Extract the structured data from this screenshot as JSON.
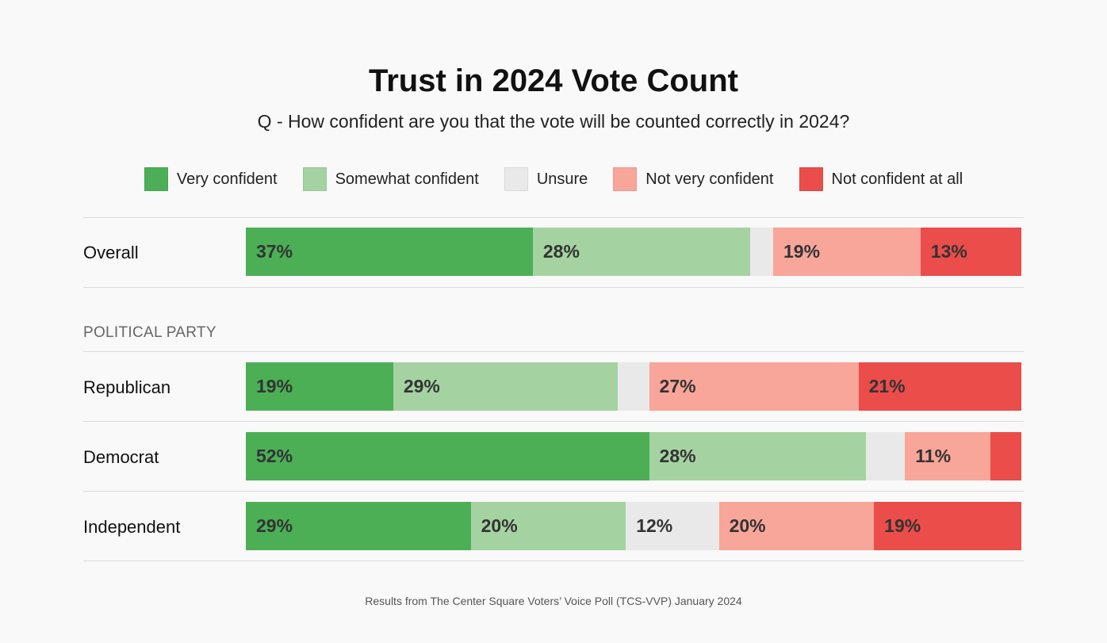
{
  "chart_data": {
    "type": "bar",
    "orientation": "horizontal-stacked-100",
    "title": "Trust in 2024 Vote Count",
    "subtitle": "Q - How confident are you that the vote will be counted correctly in 2024?",
    "legend_placement": "top",
    "series": [
      {
        "name": "Very confident",
        "color": "#4caf56"
      },
      {
        "name": "Somewhat confident",
        "color": "#a5d2a1"
      },
      {
        "name": "Unsure",
        "color": "#e9e9e9"
      },
      {
        "name": "Not very confident",
        "color": "#f8a59a"
      },
      {
        "name": "Not confident at all",
        "color": "#ea4d4a"
      }
    ],
    "section_label": "POLITICAL PARTY",
    "rows": [
      {
        "category": "Overall",
        "values": [
          37,
          28,
          3,
          19,
          13
        ],
        "labels": [
          "37%",
          "28%",
          "",
          "19%",
          "13%"
        ]
      },
      {
        "category": "Republican",
        "values": [
          19,
          29,
          4,
          27,
          21
        ],
        "labels": [
          "19%",
          "29%",
          "",
          "27%",
          "21%"
        ]
      },
      {
        "category": "Democrat",
        "values": [
          52,
          28,
          5,
          11,
          4
        ],
        "labels": [
          "52%",
          "28%",
          "",
          "11%",
          ""
        ]
      },
      {
        "category": "Independent",
        "values": [
          29,
          20,
          12,
          20,
          19
        ],
        "labels": [
          "29%",
          "20%",
          "12%",
          "20%",
          "19%"
        ]
      }
    ],
    "xlim": [
      0,
      100
    ],
    "footnote": "Results from The Center Square Voters’ Voice Poll (TCS-VVP) January 2024"
  }
}
